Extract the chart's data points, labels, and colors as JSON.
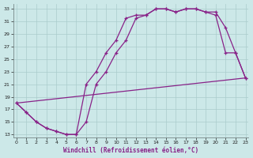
{
  "xlabel": "Windchill (Refroidissement éolien,°C)",
  "bg_color": "#cce8e8",
  "grid_color": "#aacccc",
  "line_color": "#882288",
  "xlim": [
    -0.3,
    23.3
  ],
  "ylim": [
    12.5,
    33.8
  ],
  "xticks": [
    0,
    1,
    2,
    3,
    4,
    5,
    6,
    7,
    8,
    9,
    10,
    11,
    12,
    13,
    14,
    15,
    16,
    17,
    18,
    19,
    20,
    21,
    22,
    23
  ],
  "yticks": [
    13,
    15,
    17,
    19,
    21,
    23,
    25,
    27,
    29,
    31,
    33
  ],
  "curve1_x": [
    0,
    1,
    2,
    3,
    4,
    5,
    6,
    7,
    8,
    9,
    10,
    11,
    12,
    13,
    14,
    15,
    16,
    17,
    18,
    19,
    20,
    21,
    22,
    23
  ],
  "curve1_y": [
    18,
    16.5,
    15,
    14,
    13.5,
    13,
    13,
    21,
    23,
    26,
    28,
    31.5,
    32,
    32,
    33,
    33,
    32.5,
    33,
    33,
    32.5,
    32.5,
    30,
    26,
    22
  ],
  "curve2_x": [
    0,
    1,
    2,
    3,
    4,
    5,
    6,
    7,
    8,
    9,
    10,
    11,
    12,
    13,
    14,
    15,
    16,
    17,
    18,
    19,
    20,
    21,
    22,
    23
  ],
  "curve2_y": [
    18,
    16.5,
    15,
    14,
    13.5,
    13,
    13,
    15,
    21,
    23,
    26,
    28,
    31.5,
    32,
    33,
    33,
    32.5,
    33,
    33,
    32.5,
    32,
    26,
    26,
    22
  ],
  "line3_x": [
    0,
    23
  ],
  "line3_y": [
    18,
    22
  ]
}
